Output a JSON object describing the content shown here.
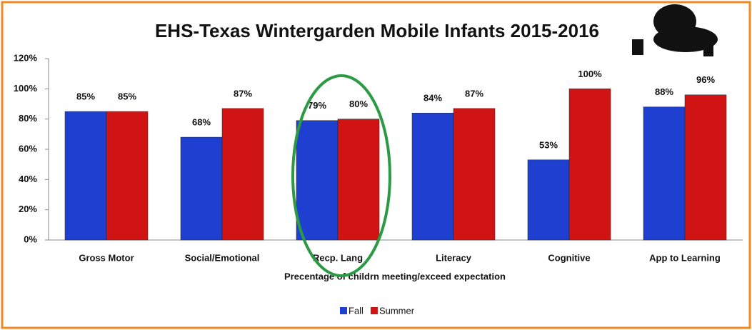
{
  "chart_data": {
    "type": "bar",
    "title": "EHS-Texas Wintergarden Mobile Infants 2015-2016",
    "x_label": "Precentage of childrn meeting/exceed expectation",
    "categories": [
      "Gross Motor",
      "Social/Emotional",
      "Recp. Lang",
      "Literacy",
      "Cognitive",
      "App to Learning"
    ],
    "series": [
      {
        "name": "Fall",
        "color": "#1f3fd0",
        "values": [
          85,
          68,
          79,
          84,
          53,
          88
        ],
        "value_labels": [
          "85%",
          "68%",
          "79%",
          "84%",
          "53%",
          "88%"
        ]
      },
      {
        "name": "Summer",
        "color": "#d01414",
        "values": [
          85,
          87,
          80,
          87,
          100,
          96
        ],
        "value_labels": [
          "85%",
          "87%",
          "80%",
          "87%",
          "100%",
          "96%"
        ]
      }
    ],
    "ylim": [
      0,
      120
    ],
    "yticks": [
      {
        "value": 0,
        "label": "0%"
      },
      {
        "value": 20,
        "label": "20%"
      },
      {
        "value": 40,
        "label": "40%"
      },
      {
        "value": 60,
        "label": "60%"
      },
      {
        "value": 80,
        "label": "80%"
      },
      {
        "value": 100,
        "label": "100%"
      },
      {
        "value": 120,
        "label": "120%"
      }
    ],
    "grid": false,
    "legend": "bottom"
  }
}
